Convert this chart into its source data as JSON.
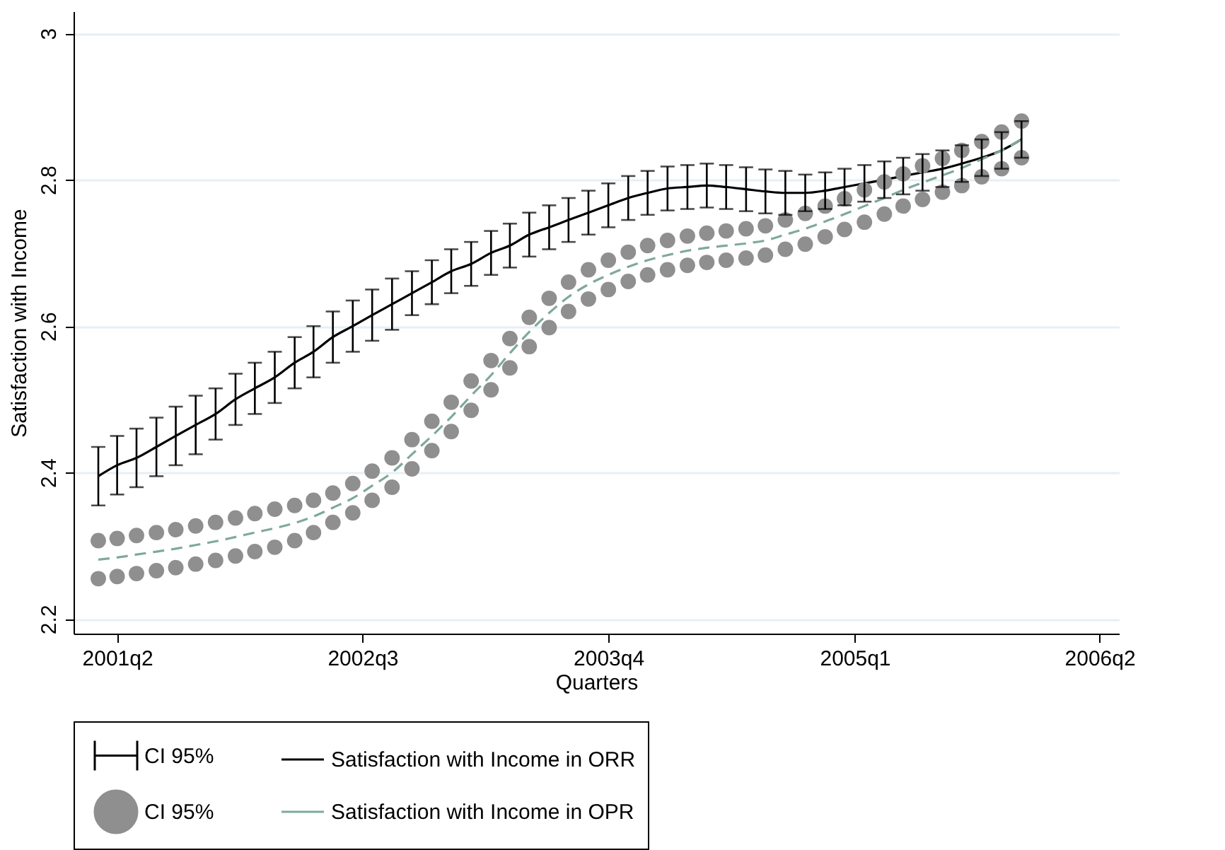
{
  "chart_data": {
    "type": "line",
    "xlabel": "Quarters",
    "ylabel": "Satisfaction with Income",
    "x": [
      "2001-02-25",
      "2001-04-01",
      "2001-05-07",
      "2001-06-13",
      "2001-07-19",
      "2001-08-25",
      "2001-10-01",
      "2001-11-07",
      "2001-12-13",
      "2002-01-19",
      "2002-02-25",
      "2002-04-01",
      "2002-05-07",
      "2002-06-13",
      "2002-07-19",
      "2002-08-25",
      "2002-10-01",
      "2002-11-07",
      "2002-12-13",
      "2003-01-19",
      "2003-02-25",
      "2003-04-01",
      "2003-05-07",
      "2003-06-13",
      "2003-07-19",
      "2003-08-25",
      "2003-10-01",
      "2003-11-07",
      "2003-12-13",
      "2004-01-19",
      "2004-02-25",
      "2004-04-01",
      "2004-05-07",
      "2004-06-13",
      "2004-07-19",
      "2004-08-25",
      "2004-10-01",
      "2004-11-07",
      "2004-12-13",
      "2005-01-19",
      "2005-02-25",
      "2005-04-01",
      "2005-05-07",
      "2005-06-13",
      "2005-07-19",
      "2005-08-25",
      "2005-10-01",
      "2005-11-07"
    ],
    "xlim": [
      "2001-01-10",
      "2006-05-07"
    ],
    "xticks": [
      {
        "value": "2001-04-01",
        "label": "2001q2"
      },
      {
        "value": "2002-07-01",
        "label": "2002q3"
      },
      {
        "value": "2003-10-01",
        "label": "2003q4"
      },
      {
        "value": "2005-01-01",
        "label": "2005q1"
      },
      {
        "value": "2006-04-01",
        "label": "2006q2"
      }
    ],
    "ylim": [
      2.18,
      3.03
    ],
    "yticks": [
      2.2,
      2.4,
      2.6,
      2.8,
      3
    ],
    "grid": "y",
    "legend": "bottom",
    "annotations": [
      "CI 95%"
    ],
    "series": [
      {
        "name": "Satisfaction with Income in ORR",
        "color": "#000000",
        "line_style": "solid",
        "values": [
          2.395,
          2.41,
          2.42,
          2.435,
          2.45,
          2.465,
          2.48,
          2.5,
          2.515,
          2.53,
          2.55,
          2.565,
          2.585,
          2.6,
          2.615,
          2.63,
          2.645,
          2.66,
          2.675,
          2.685,
          2.7,
          2.71,
          2.725,
          2.735,
          2.745,
          2.755,
          2.765,
          2.775,
          2.782,
          2.788,
          2.79,
          2.792,
          2.79,
          2.787,
          2.784,
          2.782,
          2.782,
          2.785,
          2.79,
          2.795,
          2.8,
          2.805,
          2.81,
          2.815,
          2.822,
          2.83,
          2.84,
          2.855
        ],
        "errors": [
          [
            2.355,
            2.435
          ],
          [
            2.37,
            2.45
          ],
          [
            2.38,
            2.46
          ],
          [
            2.395,
            2.475
          ],
          [
            2.41,
            2.49
          ],
          [
            2.425,
            2.505
          ],
          [
            2.445,
            2.515
          ],
          [
            2.465,
            2.535
          ],
          [
            2.48,
            2.55
          ],
          [
            2.495,
            2.565
          ],
          [
            2.515,
            2.585
          ],
          [
            2.53,
            2.6
          ],
          [
            2.55,
            2.62
          ],
          [
            2.565,
            2.635
          ],
          [
            2.58,
            2.65
          ],
          [
            2.595,
            2.665
          ],
          [
            2.615,
            2.675
          ],
          [
            2.63,
            2.69
          ],
          [
            2.645,
            2.705
          ],
          [
            2.655,
            2.715
          ],
          [
            2.67,
            2.73
          ],
          [
            2.68,
            2.74
          ],
          [
            2.695,
            2.755
          ],
          [
            2.705,
            2.765
          ],
          [
            2.715,
            2.775
          ],
          [
            2.725,
            2.785
          ],
          [
            2.735,
            2.795
          ],
          [
            2.745,
            2.805
          ],
          [
            2.752,
            2.812
          ],
          [
            2.758,
            2.818
          ],
          [
            2.76,
            2.82
          ],
          [
            2.762,
            2.822
          ],
          [
            2.76,
            2.82
          ],
          [
            2.757,
            2.817
          ],
          [
            2.754,
            2.814
          ],
          [
            2.752,
            2.812
          ],
          [
            2.757,
            2.807
          ],
          [
            2.76,
            2.81
          ],
          [
            2.765,
            2.815
          ],
          [
            2.77,
            2.82
          ],
          [
            2.775,
            2.825
          ],
          [
            2.78,
            2.83
          ],
          [
            2.785,
            2.835
          ],
          [
            2.79,
            2.84
          ],
          [
            2.797,
            2.847
          ],
          [
            2.805,
            2.855
          ],
          [
            2.815,
            2.865
          ],
          [
            2.83,
            2.88
          ]
        ]
      },
      {
        "name": "CI 95%",
        "type": "scatter",
        "color": "#8f8f8f",
        "marker": "circle",
        "values": [
          2.307,
          2.31,
          2.314,
          2.318,
          2.322,
          2.327,
          2.332,
          2.338,
          2.344,
          2.35,
          2.355,
          2.362,
          2.372,
          2.385,
          2.402,
          2.42,
          2.445,
          2.47,
          2.496,
          2.525,
          2.553,
          2.583,
          2.612,
          2.638,
          2.66,
          2.677,
          2.69,
          2.701,
          2.71,
          2.717,
          2.723,
          2.727,
          2.73,
          2.733,
          2.737,
          2.745,
          2.754,
          2.764,
          2.774,
          2.786,
          2.797,
          2.808,
          2.819,
          2.829,
          2.84,
          2.852,
          2.865,
          2.88
        ]
      },
      {
        "name": "Satisfaction with Income in OPR",
        "color": "#7fa99b",
        "line_style": "dashed",
        "values": [
          2.281,
          2.284,
          2.288,
          2.292,
          2.296,
          2.301,
          2.306,
          2.312,
          2.318,
          2.324,
          2.331,
          2.34,
          2.352,
          2.365,
          2.382,
          2.4,
          2.425,
          2.45,
          2.476,
          2.505,
          2.533,
          2.563,
          2.592,
          2.618,
          2.64,
          2.657,
          2.67,
          2.681,
          2.69,
          2.697,
          2.703,
          2.707,
          2.71,
          2.713,
          2.717,
          2.725,
          2.733,
          2.743,
          2.753,
          2.764,
          2.775,
          2.786,
          2.796,
          2.806,
          2.816,
          2.828,
          2.84,
          2.855
        ]
      },
      {
        "type": "scatter",
        "color": "#8f8f8f",
        "marker": "circle",
        "values": [
          2.255,
          2.258,
          2.262,
          2.266,
          2.27,
          2.275,
          2.28,
          2.286,
          2.292,
          2.298,
          2.307,
          2.318,
          2.332,
          2.345,
          2.362,
          2.38,
          2.405,
          2.43,
          2.456,
          2.485,
          2.513,
          2.543,
          2.572,
          2.598,
          2.62,
          2.637,
          2.65,
          2.661,
          2.67,
          2.677,
          2.683,
          2.687,
          2.69,
          2.693,
          2.697,
          2.705,
          2.712,
          2.722,
          2.732,
          2.742,
          2.753,
          2.764,
          2.773,
          2.783,
          2.792,
          2.804,
          2.815,
          2.83
        ]
      }
    ]
  }
}
